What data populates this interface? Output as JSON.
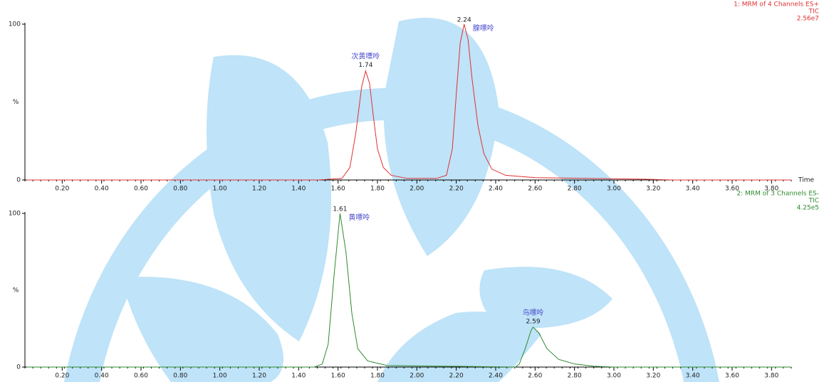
{
  "chart_data": [
    {
      "type": "line",
      "x": [
        0.02,
        1.5,
        1.62,
        1.66,
        1.69,
        1.72,
        1.74,
        1.76,
        1.78,
        1.8,
        1.83,
        1.87,
        1.95,
        2.1,
        2.15,
        2.18,
        2.2,
        2.22,
        2.24,
        2.26,
        2.28,
        2.31,
        2.34,
        2.38,
        2.45,
        2.6,
        3.15,
        3.3,
        3.9
      ],
      "series": [
        {
          "name": "1: MRM of 4 Channels ES+",
          "color": "#e03030",
          "values": [
            0,
            0,
            1,
            8,
            30,
            60,
            70,
            62,
            40,
            20,
            8,
            3,
            1,
            1,
            3,
            20,
            55,
            88,
            100,
            90,
            65,
            35,
            17,
            7,
            3,
            1.5,
            0.5,
            0,
            0
          ]
        }
      ],
      "trace": "TIC",
      "max_intensity": {
        "value": 25600000,
        "label": "2.56e7"
      },
      "ylabel": "%",
      "xlabel": "Time",
      "xlim": [
        0,
        3.9
      ],
      "ylim": [
        0,
        100
      ],
      "yticks": [
        0,
        100
      ],
      "xticks": [
        {
          "value": 0.2,
          "label": "0.20"
        },
        {
          "value": 0.4,
          "label": "0.40"
        },
        {
          "value": 0.6,
          "label": "0.60"
        },
        {
          "value": 0.8,
          "label": "0.80"
        },
        {
          "value": 1.0,
          "label": "1.00"
        },
        {
          "value": 1.2,
          "label": "1.20"
        },
        {
          "value": 1.4,
          "label": "1.40"
        },
        {
          "value": 1.6,
          "label": "1.60"
        },
        {
          "value": 1.8,
          "label": "1.80"
        },
        {
          "value": 2.0,
          "label": "2.00"
        },
        {
          "value": 2.2,
          "label": "2.20"
        },
        {
          "value": 2.4,
          "label": "2.40"
        },
        {
          "value": 2.6,
          "label": "2.60"
        },
        {
          "value": 2.8,
          "label": "2.80"
        },
        {
          "value": 3.0,
          "label": "3.00"
        },
        {
          "value": 3.2,
          "label": "3.20"
        },
        {
          "value": 3.4,
          "label": "3.40"
        },
        {
          "value": 3.6,
          "label": "3.60"
        },
        {
          "value": 3.8,
          "label": "3.80"
        }
      ],
      "peaks": [
        {
          "rt": 1.74,
          "height": 70,
          "name": "次黄嘌呤"
        },
        {
          "rt": 2.24,
          "height": 100,
          "name": "腺嘌呤"
        }
      ]
    },
    {
      "type": "line",
      "x": [
        0.02,
        1.48,
        1.52,
        1.55,
        1.58,
        1.61,
        1.64,
        1.67,
        1.7,
        1.75,
        1.85,
        2.5,
        2.52,
        2.55,
        2.58,
        2.59,
        2.62,
        2.66,
        2.72,
        2.8,
        2.9,
        3.0,
        3.9
      ],
      "series": [
        {
          "name": "2: MRM of 3 Channels ES-",
          "color": "#2e8b2e",
          "values": [
            0,
            0,
            2,
            15,
            60,
            100,
            75,
            35,
            12,
            4,
            1,
            0,
            2,
            12,
            24,
            26,
            22,
            12,
            5,
            2,
            0.5,
            0,
            0
          ]
        }
      ],
      "trace": "TIC",
      "max_intensity": {
        "value": 425000,
        "label": "4.25e5"
      },
      "ylabel": "%",
      "xlim": [
        0,
        3.9
      ],
      "ylim": [
        0,
        100
      ],
      "yticks": [
        0,
        100
      ],
      "xticks": [
        {
          "value": 0.2,
          "label": "0.20"
        },
        {
          "value": 0.4,
          "label": "0.40"
        },
        {
          "value": 0.6,
          "label": "0.60"
        },
        {
          "value": 0.8,
          "label": "0.80"
        },
        {
          "value": 1.0,
          "label": "1.00"
        },
        {
          "value": 1.2,
          "label": "1.20"
        },
        {
          "value": 1.4,
          "label": "1.40"
        },
        {
          "value": 1.6,
          "label": "1.60"
        },
        {
          "value": 1.8,
          "label": "1.80"
        },
        {
          "value": 2.0,
          "label": "2.00"
        },
        {
          "value": 2.2,
          "label": "2.20"
        },
        {
          "value": 2.4,
          "label": "2.40"
        },
        {
          "value": 2.6,
          "label": "2.60"
        },
        {
          "value": 2.8,
          "label": "2.80"
        },
        {
          "value": 3.0,
          "label": "3.00"
        },
        {
          "value": 3.2,
          "label": "3.20"
        },
        {
          "value": 3.4,
          "label": "3.40"
        },
        {
          "value": 3.6,
          "label": "3.60"
        },
        {
          "value": 3.8,
          "label": "3.80"
        }
      ],
      "peaks": [
        {
          "rt": 1.61,
          "height": 100,
          "name": "黄嘌呤"
        },
        {
          "rt": 2.59,
          "height": 26,
          "name": "鸟嘌呤"
        }
      ]
    }
  ]
}
